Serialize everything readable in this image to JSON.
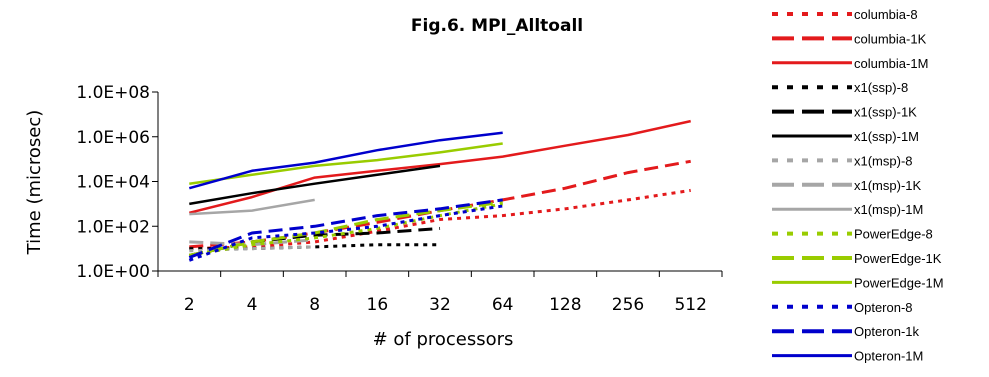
{
  "chart_data": {
    "type": "line",
    "title": "Fig.6. MPI_Alltoall",
    "xlabel": "# of processors",
    "ylabel": "Time (microsec)",
    "scale": "log10",
    "categories": [
      "2",
      "4",
      "8",
      "16",
      "32",
      "64",
      "128",
      "256",
      "512"
    ],
    "y_ticks": [
      "1.0E+00",
      "1.0E+02",
      "1.0E+04",
      "1.0E+06",
      "1.0E+08"
    ],
    "ylim": [
      1,
      100000000
    ],
    "grid": false,
    "legend_position": "right",
    "series": [
      {
        "name": "columbia-8",
        "color": "#e31a1c",
        "dash": "dot",
        "width": 3,
        "values": [
          10,
          12,
          20,
          60,
          200,
          300,
          600,
          1500,
          4000
        ]
      },
      {
        "name": "columbia-1K",
        "color": "#e31a1c",
        "dash": "dash",
        "width": 3,
        "values": [
          12,
          20,
          50,
          150,
          500,
          1500,
          5000,
          25000,
          80000
        ]
      },
      {
        "name": "columbia-1M",
        "color": "#e31a1c",
        "dash": "solid",
        "width": 2.5,
        "values": [
          400,
          2000,
          15000,
          30000,
          60000,
          130000,
          400000,
          1200000,
          5000000
        ]
      },
      {
        "name": "x1(ssp)-8",
        "color": "#000000",
        "dash": "dot",
        "width": 3,
        "values": [
          10,
          10,
          12,
          15,
          15,
          null,
          null,
          null,
          null
        ]
      },
      {
        "name": "x1(ssp)-1K",
        "color": "#000000",
        "dash": "dash",
        "width": 3,
        "values": [
          5,
          20,
          40,
          50,
          80,
          null,
          null,
          null,
          null
        ]
      },
      {
        "name": "x1(ssp)-1M",
        "color": "#000000",
        "dash": "solid",
        "width": 2.5,
        "values": [
          1000,
          3000,
          8000,
          20000,
          50000,
          null,
          null,
          null,
          null
        ]
      },
      {
        "name": "x1(msp)-8",
        "color": "#a6a6a6",
        "dash": "dot",
        "width": 3,
        "values": [
          8,
          10,
          12,
          null,
          null,
          null,
          null,
          null,
          null
        ]
      },
      {
        "name": "x1(msp)-1K",
        "color": "#a6a6a6",
        "dash": "dash",
        "width": 3,
        "values": [
          20,
          15,
          25,
          null,
          null,
          null,
          null,
          null,
          null
        ]
      },
      {
        "name": "x1(msp)-1M",
        "color": "#a6a6a6",
        "dash": "solid",
        "width": 2.5,
        "values": [
          350,
          500,
          1500,
          null,
          null,
          null,
          null,
          null,
          null
        ]
      },
      {
        "name": "PowerEdge-8",
        "color": "#99cc00",
        "dash": "dot",
        "width": 3,
        "values": [
          5,
          15,
          30,
          80,
          300,
          1000,
          null,
          null,
          null
        ]
      },
      {
        "name": "PowerEdge-1K",
        "color": "#99cc00",
        "dash": "dash",
        "width": 3,
        "values": [
          5,
          20,
          50,
          200,
          500,
          1200,
          null,
          null,
          null
        ]
      },
      {
        "name": "PowerEdge-1M",
        "color": "#99cc00",
        "dash": "solid",
        "width": 2.5,
        "values": [
          8000,
          20000,
          50000,
          90000,
          200000,
          500000,
          null,
          null,
          null
        ]
      },
      {
        "name": "Opteron-8",
        "color": "#0000cc",
        "dash": "dot",
        "width": 3,
        "values": [
          3,
          30,
          50,
          100,
          300,
          800,
          null,
          null,
          null
        ]
      },
      {
        "name": "Opteron-1k",
        "color": "#0000cc",
        "dash": "dash",
        "width": 3,
        "values": [
          4,
          50,
          100,
          300,
          600,
          1500,
          null,
          null,
          null
        ]
      },
      {
        "name": "Opteron-1M",
        "color": "#0000cc",
        "dash": "solid",
        "width": 2.5,
        "values": [
          5000,
          30000,
          70000,
          250000,
          700000,
          1500000,
          null,
          null,
          null
        ]
      }
    ]
  }
}
